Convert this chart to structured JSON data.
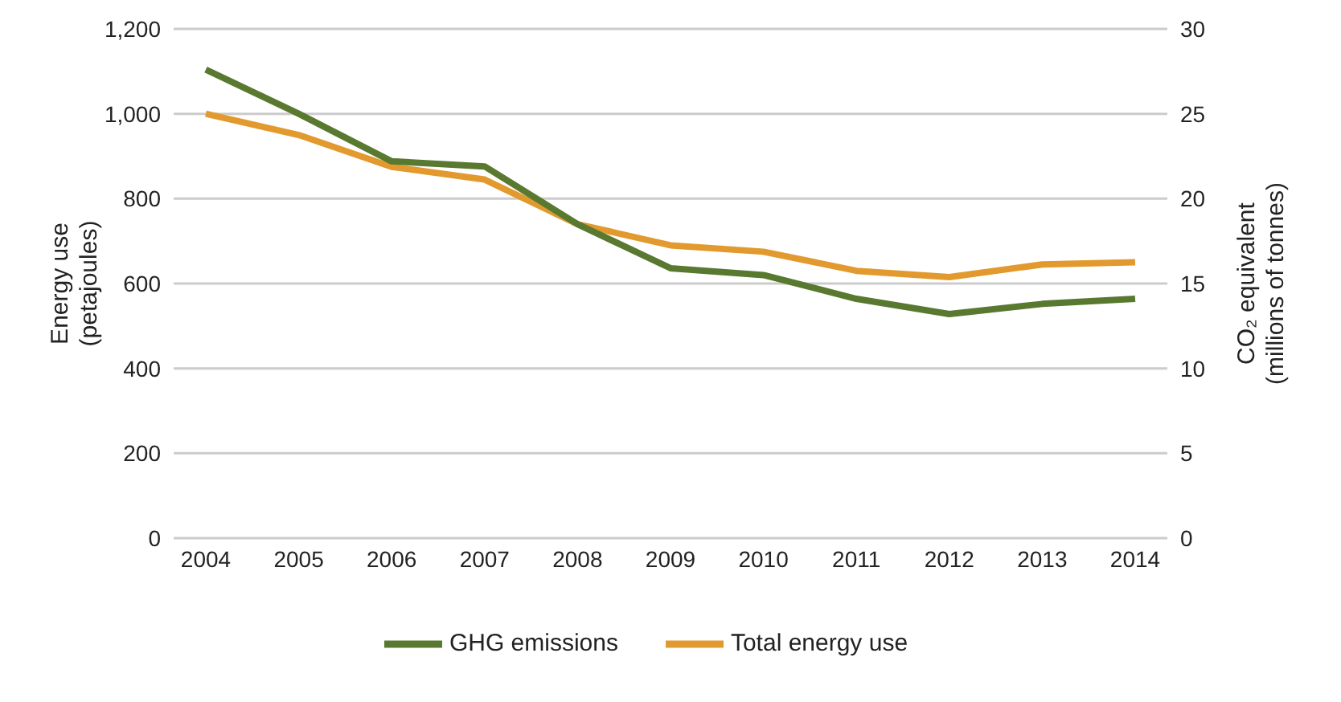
{
  "chart_data": {
    "type": "line",
    "categories": [
      "2004",
      "2005",
      "2006",
      "2007",
      "2008",
      "2009",
      "2010",
      "2011",
      "2012",
      "2013",
      "2014"
    ],
    "series": [
      {
        "name": "Total energy use",
        "color": "#e29a2e",
        "values": [
          1000,
          950,
          875,
          845,
          740,
          690,
          675,
          630,
          615,
          645,
          650
        ]
      },
      {
        "name": "GHG emissions",
        "color": "#58792f",
        "axis": "y2",
        "values": [
          27.6,
          25,
          22.2,
          21.9,
          18.5,
          15.9,
          15.5,
          14.1,
          13.2,
          13.8,
          14.1
        ]
      }
    ],
    "ylabel": "Energy use\n(petajoules)",
    "y2label": "CO₂ equivalent\n(millions of tonnes)",
    "ylim": [
      0,
      1200
    ],
    "yticks": [
      0,
      200,
      400,
      600,
      800,
      {
        "value": 1000,
        "label": "1,000"
      },
      {
        "value": 1200,
        "label": "1,200"
      }
    ],
    "y2lim": [
      0,
      30
    ],
    "y2ticks": [
      0,
      5,
      10,
      15,
      20,
      25,
      30
    ],
    "grid": "y",
    "legend": "bottom",
    "marker": "none",
    "line_style": "solid"
  }
}
